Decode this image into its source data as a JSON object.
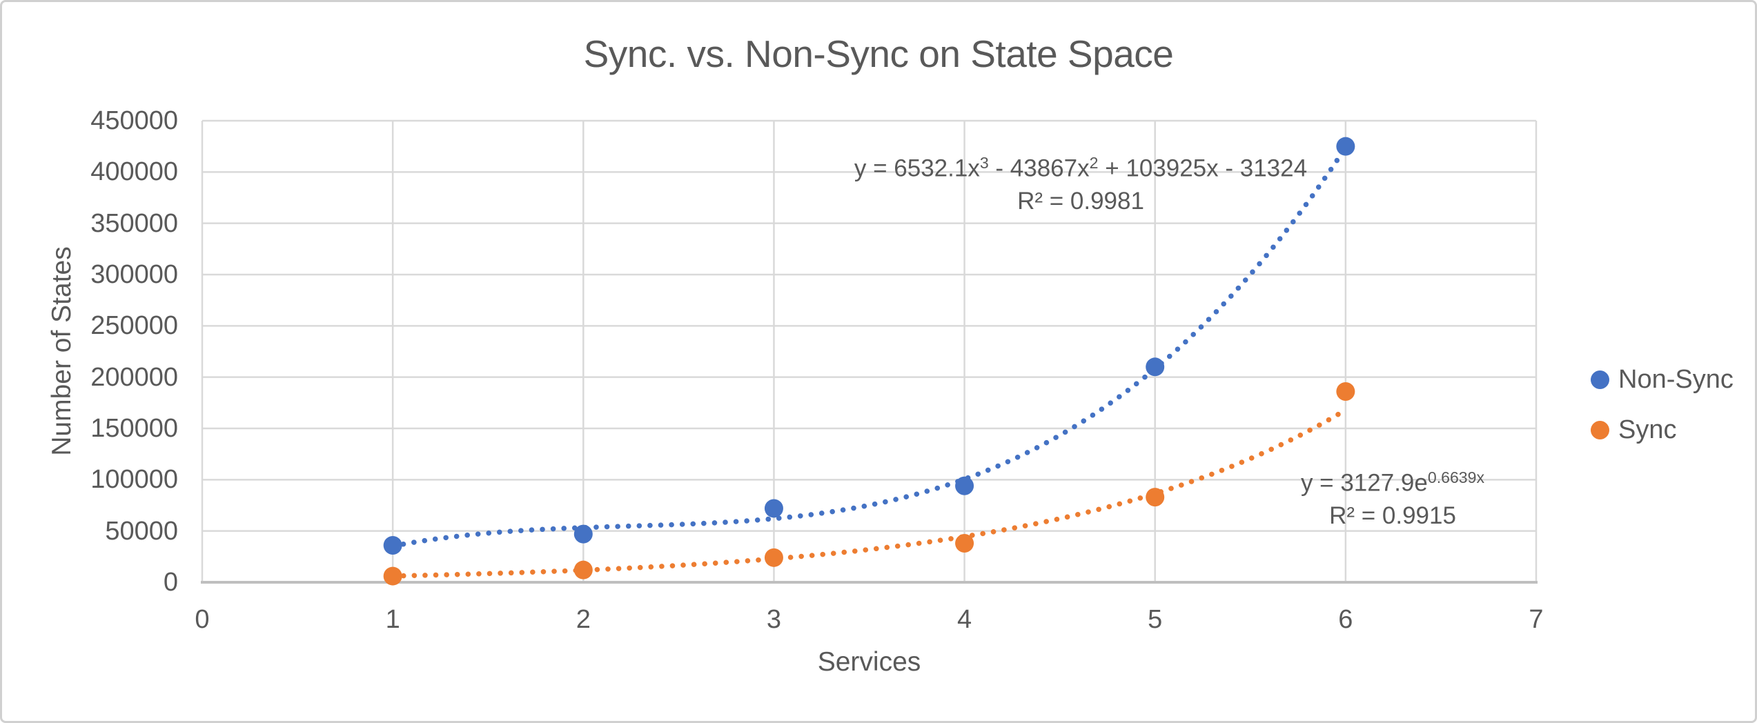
{
  "colors": {
    "text": "#595959",
    "gridline": "#d9d9d9",
    "axis_line": "#bfbfbf",
    "border": "#d0d0d0",
    "non_sync": "#4472c4",
    "sync": "#ed7d31",
    "background": "#ffffff"
  },
  "chart_data": {
    "type": "scatter",
    "title": "Sync. vs. Non-Sync on State Space",
    "xlabel": "Services",
    "ylabel": "Number of States",
    "xlim": [
      0,
      7
    ],
    "ylim": [
      0,
      450000
    ],
    "x_ticks": [
      0,
      1,
      2,
      3,
      4,
      5,
      6,
      7
    ],
    "y_ticks": [
      0,
      50000,
      100000,
      150000,
      200000,
      250000,
      300000,
      350000,
      400000,
      450000
    ],
    "grid": true,
    "legend_position": "right",
    "x": [
      1,
      2,
      3,
      4,
      5,
      6
    ],
    "series": [
      {
        "name": "Non-Sync",
        "color": "#4472c4",
        "marker": "circle",
        "values": [
          36000,
          47000,
          72000,
          94000,
          210000,
          425000
        ],
        "trendline": {
          "kind": "polynomial",
          "degree": 3,
          "coefficients": [
            6532.1,
            -43867,
            103925,
            -31324
          ],
          "style": "dotted",
          "range": [
            1,
            6
          ],
          "r_squared": 0.9981
        }
      },
      {
        "name": "Sync",
        "color": "#ed7d31",
        "marker": "circle",
        "values": [
          6000,
          12000,
          24000,
          38000,
          83000,
          186000
        ],
        "trendline": {
          "kind": "exponential",
          "a": 3127.9,
          "b": 0.6639,
          "style": "dotted",
          "range": [
            1,
            6
          ],
          "r_squared": 0.9915
        }
      }
    ]
  },
  "annotations": {
    "non_sync": {
      "eq_p1": "y = 6532.1x",
      "eq_sup1": "3",
      "eq_p2": " - 43867x",
      "eq_sup2": "2",
      "eq_p3": " + 103925x - 31324",
      "r2": "R² = 0.9981"
    },
    "sync": {
      "eq_base": "y = 3127.9e",
      "eq_exp": "0.6639x",
      "r2": "R² = 0.9915"
    }
  },
  "legend": {
    "items": [
      {
        "label": "Non-Sync",
        "color": "#4472c4"
      },
      {
        "label": "Sync",
        "color": "#ed7d31"
      }
    ]
  }
}
